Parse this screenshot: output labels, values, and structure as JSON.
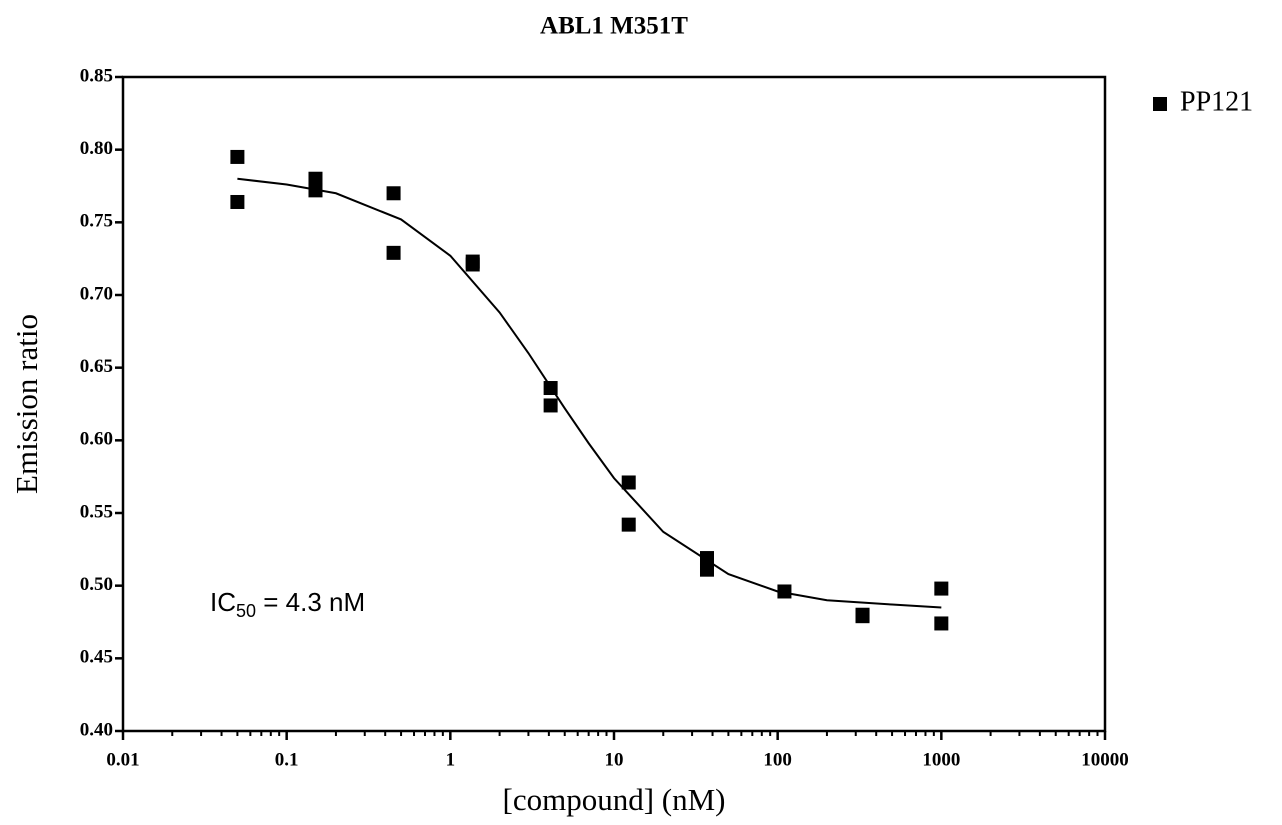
{
  "chart_data": {
    "type": "scatter",
    "title": "ABL1 M351T",
    "x_label": "[compound] (nM)",
    "y_label": "Emission ratio",
    "annotation": [
      "IC",
      "50",
      " = 4.3 nM"
    ],
    "x_scale": "log",
    "xlim": [
      0.01,
      10000
    ],
    "xticks": [
      0.01,
      0.1,
      1,
      10,
      100,
      1000,
      10000
    ],
    "ylim": [
      0.4,
      0.85
    ],
    "yticks": [
      {
        "value": 0.4,
        "label": "0.40"
      },
      {
        "value": 0.45,
        "label": "0.45"
      },
      {
        "value": 0.5,
        "label": "0.50"
      },
      {
        "value": 0.55,
        "label": "0.55"
      },
      {
        "value": 0.6,
        "label": "0.60"
      },
      {
        "value": 0.65,
        "label": "0.65"
      },
      {
        "value": 0.7,
        "label": "0.70"
      },
      {
        "value": 0.75,
        "label": "0.75"
      },
      {
        "value": 0.8,
        "label": "0.80"
      },
      {
        "value": 0.85,
        "label": "0.85"
      }
    ],
    "legend": "right",
    "series": [
      {
        "name": "PP121",
        "color": "#000000",
        "x": [
          0.05,
          0.05,
          0.15,
          0.15,
          0.45,
          0.45,
          1.37,
          1.37,
          4.1,
          4.1,
          12.3,
          12.3,
          37,
          37,
          110,
          330,
          330,
          1000,
          1000
        ],
        "values": [
          0.795,
          0.764,
          0.78,
          0.772,
          0.77,
          0.729,
          0.723,
          0.721,
          0.636,
          0.624,
          0.571,
          0.542,
          0.519,
          0.511,
          0.496,
          0.479,
          0.48,
          0.498,
          0.474
        ]
      }
    ],
    "fit": {
      "color": "#000000",
      "x": [
        0.05,
        0.1,
        0.2,
        0.5,
        1,
        2,
        3,
        5,
        7,
        10,
        20,
        50,
        100,
        200,
        500,
        1000
      ],
      "values": [
        0.78,
        0.776,
        0.77,
        0.752,
        0.727,
        0.688,
        0.66,
        0.622,
        0.598,
        0.574,
        0.537,
        0.508,
        0.496,
        0.49,
        0.487,
        0.485
      ]
    }
  }
}
